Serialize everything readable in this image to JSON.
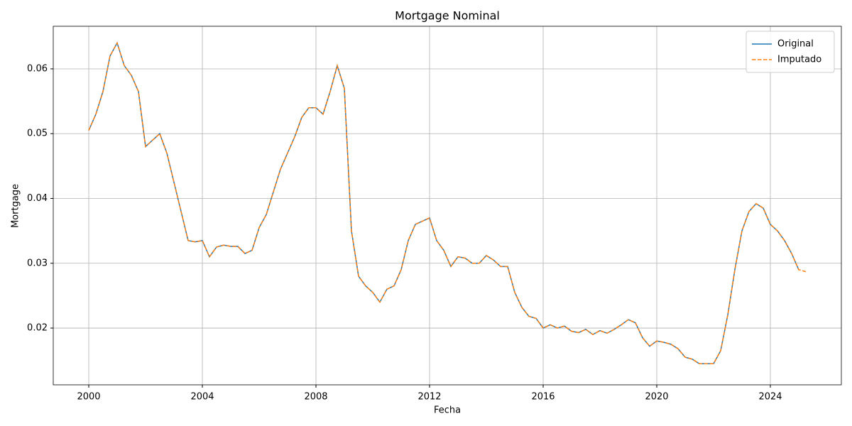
{
  "chart_data": {
    "type": "line",
    "title": "Mortgage Nominal",
    "xlabel": "Fecha",
    "ylabel": "Mortgage",
    "x": [
      2000,
      2000.25,
      2000.5,
      2000.75,
      2001,
      2001.25,
      2001.5,
      2001.75,
      2002,
      2002.25,
      2002.5,
      2002.75,
      2003,
      2003.25,
      2003.5,
      2003.75,
      2004,
      2004.25,
      2004.5,
      2004.75,
      2005,
      2005.25,
      2005.5,
      2005.75,
      2006,
      2006.25,
      2006.5,
      2006.75,
      2007,
      2007.25,
      2007.5,
      2007.75,
      2008,
      2008.25,
      2008.5,
      2008.75,
      2009,
      2009.25,
      2009.5,
      2009.75,
      2010,
      2010.25,
      2010.5,
      2010.75,
      2011,
      2011.25,
      2011.5,
      2011.75,
      2012,
      2012.25,
      2012.5,
      2012.75,
      2013,
      2013.25,
      2013.5,
      2013.75,
      2014,
      2014.25,
      2014.5,
      2014.75,
      2015,
      2015.25,
      2015.5,
      2015.75,
      2016,
      2016.25,
      2016.5,
      2016.75,
      2017,
      2017.25,
      2017.5,
      2017.75,
      2018,
      2018.25,
      2018.5,
      2018.75,
      2019,
      2019.25,
      2019.5,
      2019.75,
      2020,
      2020.25,
      2020.5,
      2020.75,
      2021,
      2021.25,
      2021.5,
      2021.75,
      2022,
      2022.25,
      2022.5,
      2022.75,
      2023,
      2023.25,
      2023.5,
      2023.75,
      2024,
      2024.25,
      2024.5,
      2024.75,
      2025,
      2025.25
    ],
    "series": [
      {
        "name": "Original",
        "color": "#1f77b4",
        "dash": false,
        "values": [
          0.0505,
          0.053,
          0.0565,
          0.062,
          0.064,
          0.0605,
          0.059,
          0.0565,
          0.048,
          0.049,
          0.05,
          0.047,
          0.0425,
          0.038,
          0.0335,
          0.0333,
          0.0335,
          0.031,
          0.0325,
          0.0328,
          0.0326,
          0.0326,
          0.0315,
          0.032,
          0.0355,
          0.0375,
          0.041,
          0.0445,
          0.047,
          0.0495,
          0.0525,
          0.054,
          0.054,
          0.053,
          0.0565,
          0.0605,
          0.057,
          0.035,
          0.028,
          0.0265,
          0.0255,
          0.024,
          0.026,
          0.0265,
          0.029,
          0.0335,
          0.036,
          0.0365,
          0.037,
          0.0335,
          0.032,
          0.0295,
          0.031,
          0.0308,
          0.03,
          0.03,
          0.0312,
          0.0305,
          0.0295,
          0.0295,
          0.0255,
          0.0232,
          0.0218,
          0.0215,
          0.02,
          0.0205,
          0.02,
          0.0203,
          0.0195,
          0.0193,
          0.0198,
          0.019,
          0.0196,
          0.0192,
          0.0198,
          0.0205,
          0.0213,
          0.0208,
          0.0185,
          0.0172,
          0.018,
          0.0178,
          0.0175,
          0.0168,
          0.0155,
          0.0152,
          0.0145,
          0.0145,
          0.0145,
          0.0165,
          0.022,
          0.029,
          0.035,
          0.038,
          0.0392,
          0.0385,
          0.036,
          0.035,
          0.0335,
          0.0315,
          0.029,
          null
        ]
      },
      {
        "name": "Imputado",
        "color": "#ff7f0e",
        "dash": true,
        "values": [
          0.0505,
          0.053,
          0.0565,
          0.062,
          0.064,
          0.0605,
          0.059,
          0.0565,
          0.048,
          0.049,
          0.05,
          0.047,
          0.0425,
          0.038,
          0.0335,
          0.0333,
          0.0335,
          0.031,
          0.0325,
          0.0328,
          0.0326,
          0.0326,
          0.0315,
          0.032,
          0.0355,
          0.0375,
          0.041,
          0.0445,
          0.047,
          0.0495,
          0.0525,
          0.054,
          0.054,
          0.053,
          0.0565,
          0.0605,
          0.057,
          0.035,
          0.028,
          0.0265,
          0.0255,
          0.024,
          0.026,
          0.0265,
          0.029,
          0.0335,
          0.036,
          0.0365,
          0.037,
          0.0335,
          0.032,
          0.0295,
          0.031,
          0.0308,
          0.03,
          0.03,
          0.0312,
          0.0305,
          0.0295,
          0.0295,
          0.0255,
          0.0232,
          0.0218,
          0.0215,
          0.02,
          0.0205,
          0.02,
          0.0203,
          0.0195,
          0.0193,
          0.0198,
          0.019,
          0.0196,
          0.0192,
          0.0198,
          0.0205,
          0.0213,
          0.0208,
          0.0185,
          0.0172,
          0.018,
          0.0178,
          0.0175,
          0.0168,
          0.0155,
          0.0152,
          0.0145,
          0.0145,
          0.0145,
          0.0165,
          0.022,
          0.029,
          0.035,
          0.038,
          0.0392,
          0.0385,
          0.036,
          0.035,
          0.0335,
          0.0315,
          0.029,
          0.0287
        ]
      }
    ],
    "xlim": [
      1998.75,
      2026.5
    ],
    "ylim": [
      0.01124,
      0.06657
    ],
    "xticks": [
      2000,
      2004,
      2008,
      2012,
      2016,
      2020,
      2024
    ],
    "yticks": [
      0.02,
      0.03,
      0.04,
      0.05,
      0.06
    ],
    "grid": true,
    "legend": "upper-right"
  }
}
